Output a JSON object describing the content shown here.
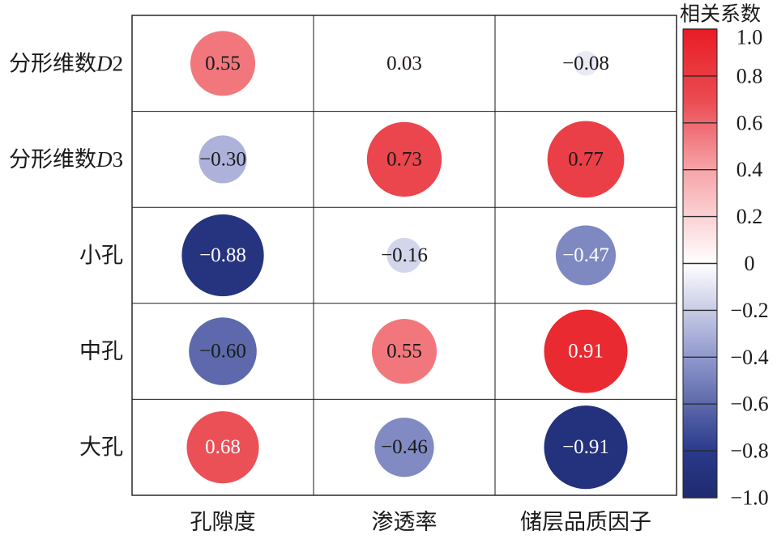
{
  "chart_data": {
    "type": "heatmap",
    "marker": "circle",
    "grid": true,
    "columns": [
      "孔隙度",
      "渗透率",
      "储层品质因子"
    ],
    "rows": [
      {
        "label": [
          {
            "text": "分形维数"
          },
          {
            "text": "D",
            "italic": true
          },
          {
            "text": "2"
          }
        ]
      },
      {
        "label": [
          {
            "text": "分形维数"
          },
          {
            "text": "D",
            "italic": true
          },
          {
            "text": "3"
          }
        ]
      },
      {
        "label": [
          {
            "text": "小孔"
          }
        ]
      },
      {
        "label": [
          {
            "text": "中孔"
          }
        ]
      },
      {
        "label": [
          {
            "text": "大孔"
          }
        ]
      }
    ],
    "cells": [
      [
        {
          "value": 0.55,
          "label": "0.55",
          "text_color": "#1a1a1a"
        },
        {
          "value": 0.03,
          "label": "0.03",
          "text_color": "#1a1a1a"
        },
        {
          "value": -0.08,
          "label": "−0.08",
          "text_color": "#1a1a1a"
        }
      ],
      [
        {
          "value": -0.3,
          "label": "−0.30",
          "text_color": "#1a1a1a"
        },
        {
          "value": 0.73,
          "label": "0.73",
          "text_color": "#1a1a1a"
        },
        {
          "value": 0.77,
          "label": "0.77",
          "text_color": "#1a1a1a"
        }
      ],
      [
        {
          "value": -0.88,
          "label": "−0.88",
          "text_color": "#ffffff"
        },
        {
          "value": -0.16,
          "label": "−0.16",
          "text_color": "#1a1a1a"
        },
        {
          "value": -0.47,
          "label": "−0.47",
          "text_color": "#ffffff"
        }
      ],
      [
        {
          "value": -0.6,
          "label": "−0.60",
          "text_color": "#1a1a1a"
        },
        {
          "value": 0.55,
          "label": "0.55",
          "text_color": "#1a1a1a"
        },
        {
          "value": 0.91,
          "label": "0.91",
          "text_color": "#ffffff"
        }
      ],
      [
        {
          "value": 0.68,
          "label": "0.68",
          "text_color": "#ffffff"
        },
        {
          "value": -0.46,
          "label": "−0.46",
          "text_color": "#1a1a1a"
        },
        {
          "value": -0.91,
          "label": "−0.91",
          "text_color": "#ffffff"
        }
      ]
    ],
    "colorbar": {
      "title": "相关系数",
      "position": "right",
      "range": [
        -1,
        1
      ],
      "ticks": [
        {
          "value": 1.0,
          "label": "1.0"
        },
        {
          "value": 0.8,
          "label": "0.8"
        },
        {
          "value": 0.6,
          "label": "0.6"
        },
        {
          "value": 0.4,
          "label": "0.4"
        },
        {
          "value": 0.2,
          "label": "0.2"
        },
        {
          "value": 0.0,
          "label": "0"
        },
        {
          "value": -0.2,
          "label": "−0.2"
        },
        {
          "value": -0.4,
          "label": "−0.4"
        },
        {
          "value": -0.6,
          "label": "−0.6"
        },
        {
          "value": -0.8,
          "label": "−0.8"
        },
        {
          "value": -1.0,
          "label": "−1.0"
        }
      ],
      "stops": [
        {
          "value": -1.0,
          "color": "#1f2a6e"
        },
        {
          "value": -0.8,
          "color": "#2a3a8c"
        },
        {
          "value": -0.4,
          "color": "#9098cc"
        },
        {
          "value": 0.0,
          "color": "#ffffff"
        },
        {
          "value": 0.4,
          "color": "#f6a4a8"
        },
        {
          "value": 0.7,
          "color": "#eb4a51"
        },
        {
          "value": 1.0,
          "color": "#e81c24"
        }
      ]
    }
  }
}
